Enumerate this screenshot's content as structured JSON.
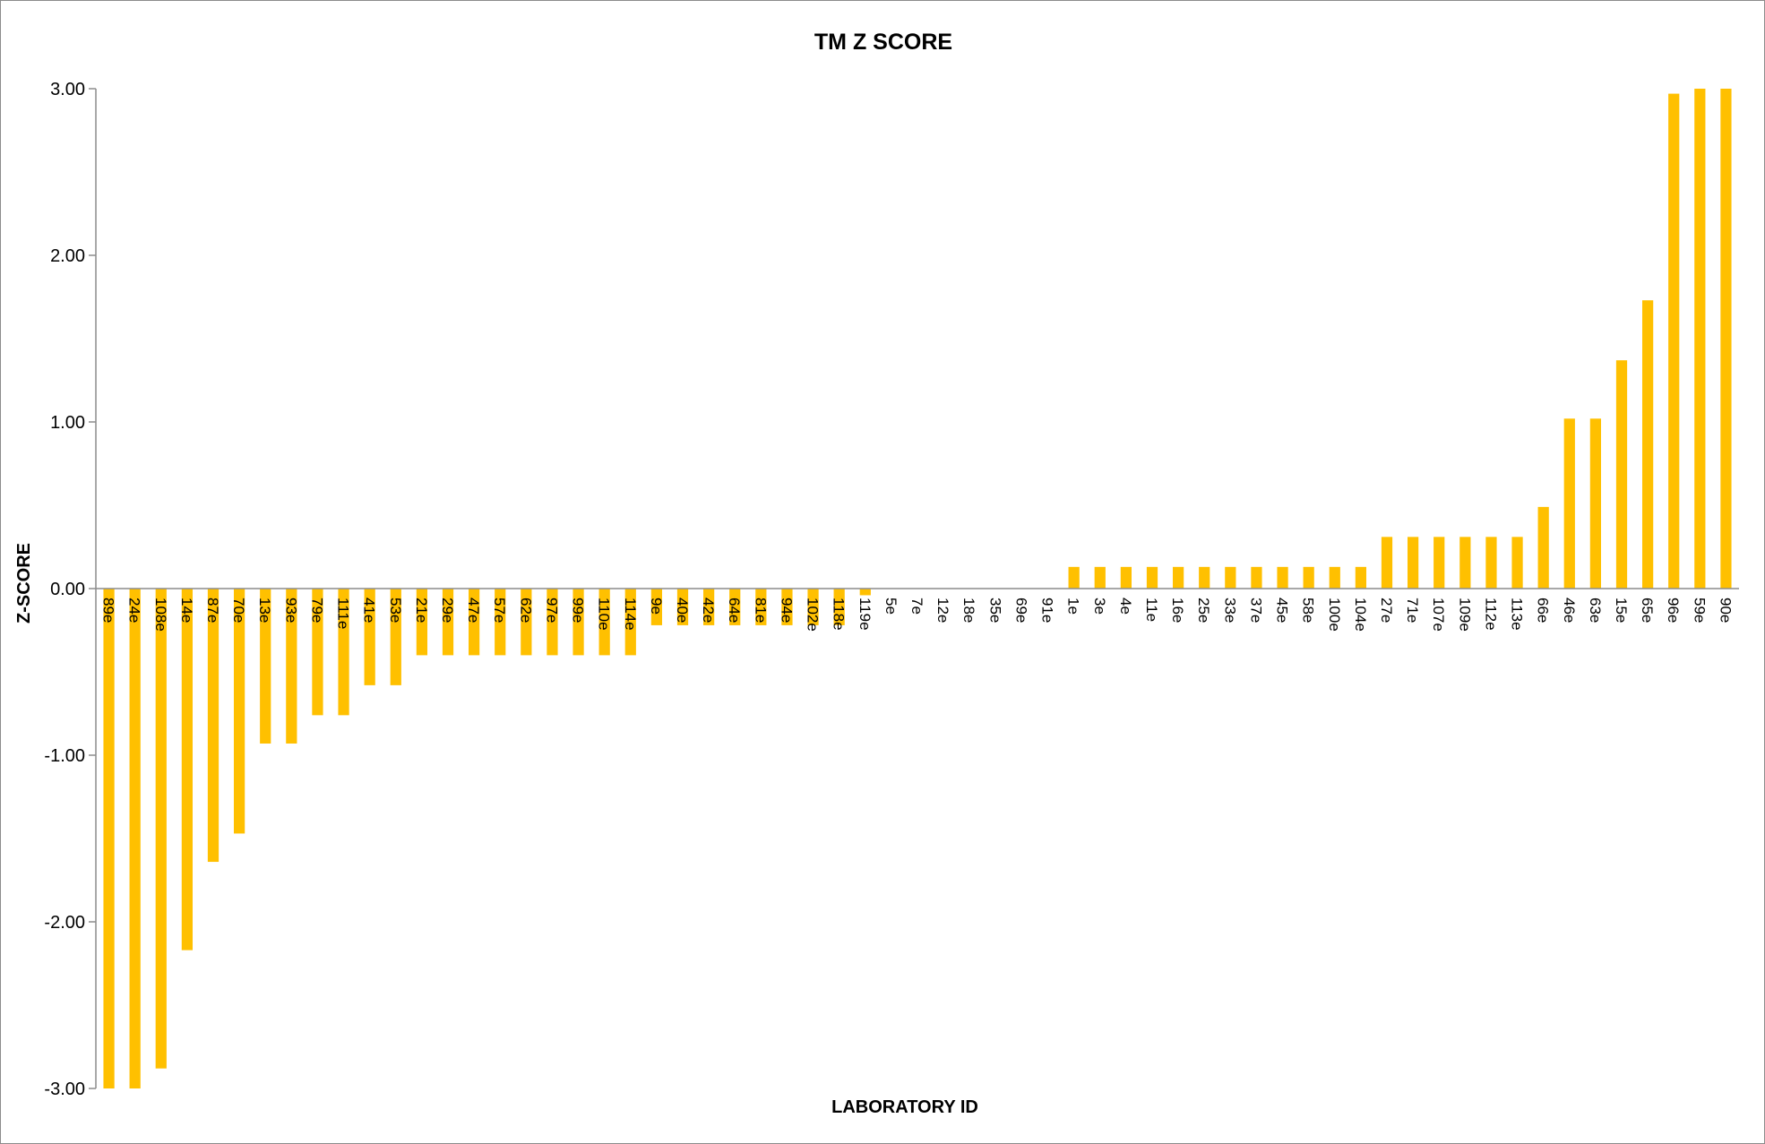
{
  "chart_data": {
    "type": "bar",
    "title": "TM Z SCORE",
    "xlabel": "LABORATORY ID",
    "ylabel": "Z-SCORE",
    "ylim": [
      -3,
      3
    ],
    "yticks": [
      "3.00",
      "2.00",
      "1.00",
      "0.00",
      "-1.00",
      "-2.00",
      "-3.00"
    ],
    "ytick_values": [
      3,
      2,
      1,
      0,
      -1,
      -2,
      -3
    ],
    "grid": false,
    "legend": "none",
    "bar_color": "#FFC000",
    "categories": [
      "89e",
      "24e",
      "108e",
      "14e",
      "87e",
      "70e",
      "13e",
      "93e",
      "79e",
      "111e",
      "41e",
      "53e",
      "21e",
      "29e",
      "47e",
      "57e",
      "62e",
      "97e",
      "99e",
      "110e",
      "114e",
      "9e",
      "40e",
      "42e",
      "64e",
      "81e",
      "94e",
      "102e",
      "118e",
      "119e",
      "5e",
      "7e",
      "12e",
      "18e",
      "35e",
      "69e",
      "91e",
      "1e",
      "3e",
      "4e",
      "11e",
      "16e",
      "25e",
      "33e",
      "37e",
      "45e",
      "58e",
      "100e",
      "104e",
      "27e",
      "71e",
      "107e",
      "109e",
      "112e",
      "113e",
      "66e",
      "46e",
      "63e",
      "15e",
      "65e",
      "96e",
      "59e",
      "90e"
    ],
    "values": [
      -3.0,
      -3.0,
      -2.88,
      -2.17,
      -1.64,
      -1.47,
      -0.93,
      -0.93,
      -0.76,
      -0.76,
      -0.58,
      -0.58,
      -0.4,
      -0.4,
      -0.4,
      -0.4,
      -0.4,
      -0.4,
      -0.4,
      -0.4,
      -0.4,
      -0.22,
      -0.22,
      -0.22,
      -0.22,
      -0.22,
      -0.22,
      -0.22,
      -0.22,
      -0.04,
      0.0,
      0.0,
      0.0,
      0.0,
      0.0,
      0.0,
      0.0,
      0.13,
      0.13,
      0.13,
      0.13,
      0.13,
      0.13,
      0.13,
      0.13,
      0.13,
      0.13,
      0.13,
      0.13,
      0.31,
      0.31,
      0.31,
      0.31,
      0.31,
      0.31,
      0.49,
      1.02,
      1.02,
      1.37,
      1.73,
      2.97,
      3.0,
      3.0
    ]
  }
}
